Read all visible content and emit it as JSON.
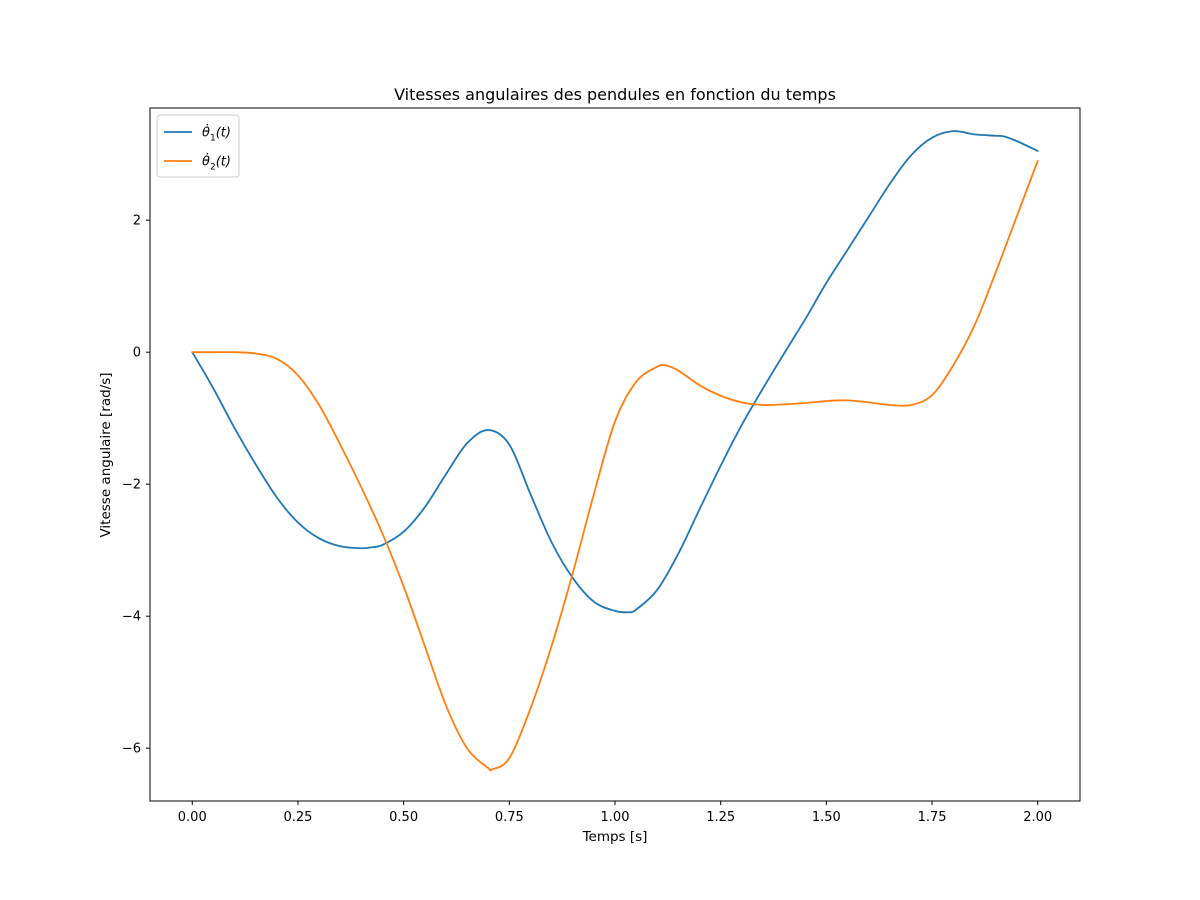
{
  "chart_data": {
    "type": "line",
    "title": "Vitesses angulaires des pendules en fonction du temps",
    "xlabel": "Temps [s]",
    "ylabel": "Vitesse angulaire [rad/s]",
    "xlim": [
      -0.1,
      2.1
    ],
    "ylim": [
      -6.8,
      3.7
    ],
    "x_ticks": [
      0.0,
      0.25,
      0.5,
      0.75,
      1.0,
      1.25,
      1.5,
      1.75,
      2.0
    ],
    "x_tick_labels": [
      "0.00",
      "0.25",
      "0.50",
      "0.75",
      "1.00",
      "1.25",
      "1.50",
      "1.75",
      "2.00"
    ],
    "y_ticks": [
      -6,
      -4,
      -2,
      0,
      2
    ],
    "y_tick_labels": [
      "−6",
      "−4",
      "−2",
      "0",
      "2"
    ],
    "grid": false,
    "legend_position": "upper-left",
    "series": [
      {
        "name_base": "θ̇",
        "name_sub": "1",
        "name_suffix": "(t)",
        "color": "#1f77b4",
        "x": [
          0.0,
          0.05,
          0.1,
          0.15,
          0.2,
          0.25,
          0.3,
          0.35,
          0.4,
          0.42,
          0.45,
          0.5,
          0.55,
          0.6,
          0.65,
          0.7,
          0.75,
          0.8,
          0.85,
          0.9,
          0.95,
          1.0,
          1.03,
          1.05,
          1.1,
          1.15,
          1.2,
          1.25,
          1.3,
          1.35,
          1.4,
          1.45,
          1.5,
          1.55,
          1.6,
          1.65,
          1.7,
          1.75,
          1.8,
          1.85,
          1.9,
          1.92,
          1.95,
          2.0
        ],
        "y": [
          0.0,
          -0.55,
          -1.15,
          -1.7,
          -2.2,
          -2.58,
          -2.82,
          -2.94,
          -2.97,
          -2.96,
          -2.92,
          -2.72,
          -2.35,
          -1.85,
          -1.38,
          -1.18,
          -1.4,
          -2.15,
          -2.88,
          -3.42,
          -3.78,
          -3.92,
          -3.94,
          -3.9,
          -3.6,
          -3.05,
          -2.38,
          -1.72,
          -1.1,
          -0.55,
          -0.02,
          0.5,
          1.05,
          1.55,
          2.05,
          2.55,
          2.98,
          3.25,
          3.35,
          3.3,
          3.28,
          3.27,
          3.2,
          3.05
        ]
      },
      {
        "name_base": "θ̇",
        "name_sub": "2",
        "name_suffix": "(t)",
        "color": "#ff7f0e",
        "x": [
          0.0,
          0.05,
          0.1,
          0.15,
          0.2,
          0.25,
          0.3,
          0.35,
          0.4,
          0.45,
          0.5,
          0.55,
          0.6,
          0.65,
          0.7,
          0.71,
          0.75,
          0.8,
          0.85,
          0.9,
          0.95,
          1.0,
          1.05,
          1.1,
          1.12,
          1.15,
          1.2,
          1.25,
          1.3,
          1.35,
          1.4,
          1.45,
          1.5,
          1.55,
          1.6,
          1.65,
          1.7,
          1.75,
          1.8,
          1.85,
          1.9,
          1.95,
          2.0
        ],
        "y": [
          0.0,
          0.0,
          0.0,
          -0.02,
          -0.1,
          -0.35,
          -0.8,
          -1.4,
          -2.05,
          -2.75,
          -3.55,
          -4.45,
          -5.35,
          -6.0,
          -6.3,
          -6.32,
          -6.15,
          -5.4,
          -4.45,
          -3.35,
          -2.15,
          -1.05,
          -0.45,
          -0.22,
          -0.2,
          -0.28,
          -0.5,
          -0.66,
          -0.76,
          -0.8,
          -0.79,
          -0.77,
          -0.74,
          -0.73,
          -0.76,
          -0.8,
          -0.8,
          -0.65,
          -0.2,
          0.4,
          1.2,
          2.05,
          2.9
        ]
      }
    ]
  }
}
